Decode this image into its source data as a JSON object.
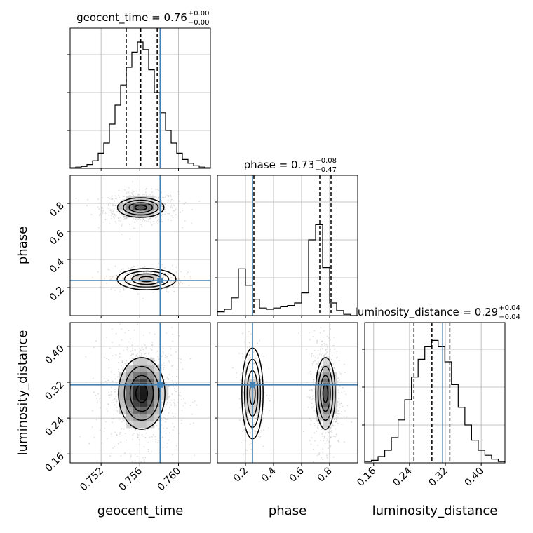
{
  "chart_data": {
    "type": "corner",
    "parameters": [
      "geocent_time",
      "phase",
      "luminosity_distance"
    ],
    "truth_color": "#4682b4",
    "truths": {
      "geocent_time": 0.7581,
      "phase": 0.25,
      "luminosity_distance": 0.314
    },
    "ranges": {
      "geocent_time": [
        0.7488,
        0.7633
      ],
      "phase": [
        0.0,
        1.0
      ],
      "luminosity_distance": [
        0.14,
        0.453
      ]
    },
    "ticks": {
      "geocent_time": [
        0.752,
        0.756,
        0.76
      ],
      "phase": [
        0.2,
        0.4,
        0.6,
        0.8
      ],
      "luminosity_distance": [
        0.16,
        0.24,
        0.32,
        0.4
      ]
    },
    "tick_labels": {
      "geocent_time": [
        "0.752",
        "0.756",
        "0.760"
      ],
      "phase": [
        "0.2",
        "0.4",
        "0.6",
        "0.8"
      ],
      "luminosity_distance": [
        "0.16",
        "0.24",
        "0.32",
        "0.40"
      ]
    },
    "axis_labels": {
      "geocent_time": "geocent_time",
      "phase": "phase",
      "luminosity_distance": "luminosity_distance"
    },
    "titles": [
      {
        "param": "geocent_time",
        "text": "geocent_time = 0.76",
        "sup": "+0.00",
        "sub": "−0.00"
      },
      {
        "param": "phase",
        "text": "phase = 0.73",
        "sup": "+0.08",
        "sub": "−0.47"
      },
      {
        "param": "luminosity_distance",
        "text": "luminosity_distance = 0.29",
        "sup": "+0.04",
        "sub": "−0.04"
      }
    ],
    "quantiles": {
      "geocent_time": [
        0.7546,
        0.7561,
        0.7578
      ],
      "phase": [
        0.26,
        0.73,
        0.81
      ],
      "luminosity_distance": [
        0.25,
        0.29,
        0.33
      ]
    },
    "histograms": {
      "geocent_time": [
        0.005,
        0.01,
        0.015,
        0.03,
        0.06,
        0.12,
        0.2,
        0.35,
        0.5,
        0.66,
        0.8,
        0.92,
        1.0,
        0.94,
        0.78,
        0.6,
        0.44,
        0.3,
        0.2,
        0.12,
        0.07,
        0.04,
        0.02,
        0.01,
        0.005
      ],
      "phase": [
        0.03,
        0.05,
        0.14,
        0.37,
        0.24,
        0.13,
        0.06,
        0.05,
        0.06,
        0.07,
        0.08,
        0.1,
        0.18,
        0.6,
        0.72,
        0.38,
        0.1,
        0.04,
        0.01,
        0.0
      ],
      "luminosity_distance": [
        0.01,
        0.02,
        0.05,
        0.1,
        0.2,
        0.34,
        0.5,
        0.68,
        0.82,
        0.92,
        0.97,
        0.92,
        0.8,
        0.62,
        0.44,
        0.3,
        0.18,
        0.1,
        0.06,
        0.03,
        0.01
      ]
    },
    "modes": [
      {
        "pair": [
          "geocent_time",
          "phase"
        ],
        "center": [
          0.7561,
          0.77
        ],
        "sigma": [
          0.0012,
          0.035
        ],
        "weight": 0.72
      },
      {
        "pair": [
          "geocent_time",
          "phase"
        ],
        "center": [
          0.7567,
          0.26
        ],
        "sigma": [
          0.0012,
          0.03
        ],
        "weight": 0.28
      },
      {
        "pair": [
          "geocent_time",
          "luminosity_distance"
        ],
        "center": [
          0.7562,
          0.295
        ],
        "sigma": [
          0.0012,
          0.04
        ],
        "weight": 1.0
      },
      {
        "pair": [
          "phase",
          "luminosity_distance"
        ],
        "center": [
          0.77,
          0.295
        ],
        "sigma": [
          0.035,
          0.04
        ],
        "weight": 0.72
      },
      {
        "pair": [
          "phase",
          "luminosity_distance"
        ],
        "center": [
          0.25,
          0.295
        ],
        "sigma": [
          0.03,
          0.04
        ],
        "weight": 0.28
      }
    ],
    "grid": true
  }
}
